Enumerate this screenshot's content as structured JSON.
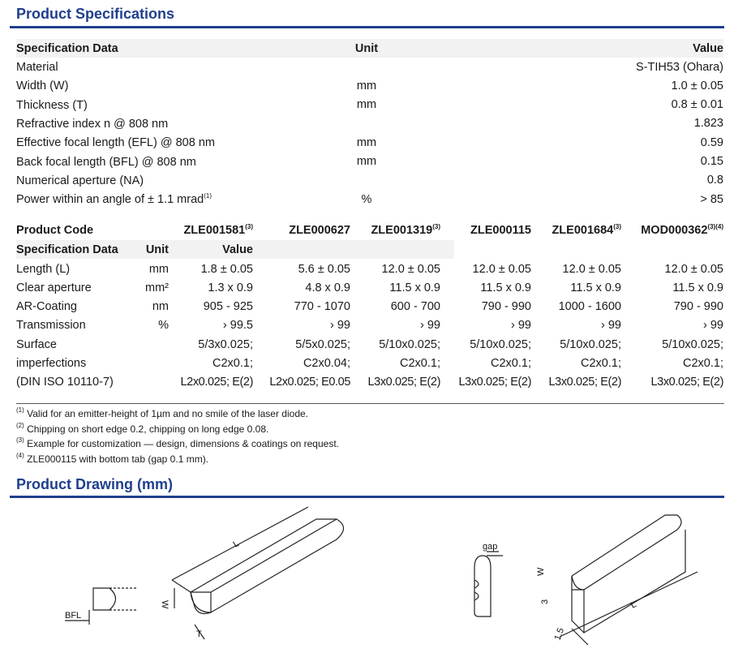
{
  "spec_title": "Product Specifications",
  "spec_table": {
    "headers": [
      "Specification Data",
      "Unit",
      "Value"
    ],
    "rows": [
      [
        "Material",
        "",
        "S-TIH53 (Ohara)",
        ""
      ],
      [
        "Width (W)",
        "mm",
        "1.0 ± 0.05",
        ""
      ],
      [
        "Thickness (T)",
        "mm",
        "0.8 ± 0.01",
        ""
      ],
      [
        "Refractive index n @ 808 nm",
        "",
        "1.823",
        ""
      ],
      [
        "Effective focal length (EFL) @ 808 nm",
        "mm",
        "0.59",
        ""
      ],
      [
        "Back focal length (BFL) @ 808 nm",
        "mm",
        "0.15",
        ""
      ],
      [
        "Numerical aperture (NA)",
        "",
        "0.8",
        ""
      ],
      [
        "Power within an angle of ± 1.1 mrad",
        "%",
        "> 85",
        "(1)"
      ]
    ]
  },
  "product_table": {
    "code_label": "Product Code",
    "codes": [
      [
        "ZLE001581",
        "(3)"
      ],
      [
        "ZLE000627",
        ""
      ],
      [
        "ZLE001319",
        "(3)"
      ],
      [
        "ZLE000115",
        ""
      ],
      [
        "ZLE001684",
        "(3)"
      ],
      [
        "MOD000362",
        "(3)(4)"
      ]
    ],
    "headers": [
      "Specification Data",
      "Unit",
      "Value"
    ],
    "rows": [
      [
        "Length (L)",
        "mm",
        "1.8 ± 0.05",
        "5.6 ± 0.05",
        "12.0 ± 0.05",
        "12.0 ± 0.05",
        "12.0 ± 0.05",
        "12.0 ± 0.05"
      ],
      [
        "Clear aperture",
        "mm²",
        "1.3 x 0.9",
        "4.8 x 0.9",
        "11.5 x 0.9",
        "11.5 x 0.9",
        "11.5 x 0.9",
        "11.5 x 0.9"
      ],
      [
        "AR-Coating",
        "nm",
        "905 - 925",
        "770 - 1070",
        "600 - 700",
        "790 - 990",
        "1000 - 1600",
        "790 - 990"
      ],
      [
        "Transmission",
        "%",
        "› 99.5",
        "› 99",
        "› 99",
        "› 99",
        "› 99",
        "› 99"
      ],
      [
        "Surface",
        "",
        "5/3x0.025;",
        "5/5x0.025;",
        "5/10x0.025;",
        "5/10x0.025;",
        "5/10x0.025;",
        "5/10x0.025;"
      ],
      [
        "imperfections",
        "",
        "C2x0.1;",
        "C2x0.04;",
        "C2x0.1;",
        "C2x0.1;",
        "C2x0.1;",
        "C2x0.1;"
      ],
      [
        "(DIN ISO 10110-7)",
        "",
        "L2x0.025; E(2)",
        "L2x0.025; E0.05",
        "L3x0.025; E(2)",
        "L3x0.025; E(2)",
        "L3x0.025; E(2)",
        "L3x0.025; E(2)"
      ]
    ]
  },
  "footnotes": [
    [
      "(1)",
      "Valid for an emitter-height of 1µm  and no smile of the laser diode."
    ],
    [
      "(2)",
      "Chipping on short edge 0.2, chipping on long edge 0.08."
    ],
    [
      "(3)",
      "Example for customization — design, dimensions & coatings on request."
    ],
    [
      "(4)",
      "ZLE000115 with bottom tab (gap 0.1 mm)."
    ]
  ],
  "drawing_title": "Product Drawing (mm)",
  "drawing_labels": {
    "L": "L",
    "W": "W",
    "T": "T",
    "BFL": "BFL",
    "gap": "gap",
    "W2": "W",
    "three": "3",
    "L2": "L",
    "w15": "1.5"
  }
}
